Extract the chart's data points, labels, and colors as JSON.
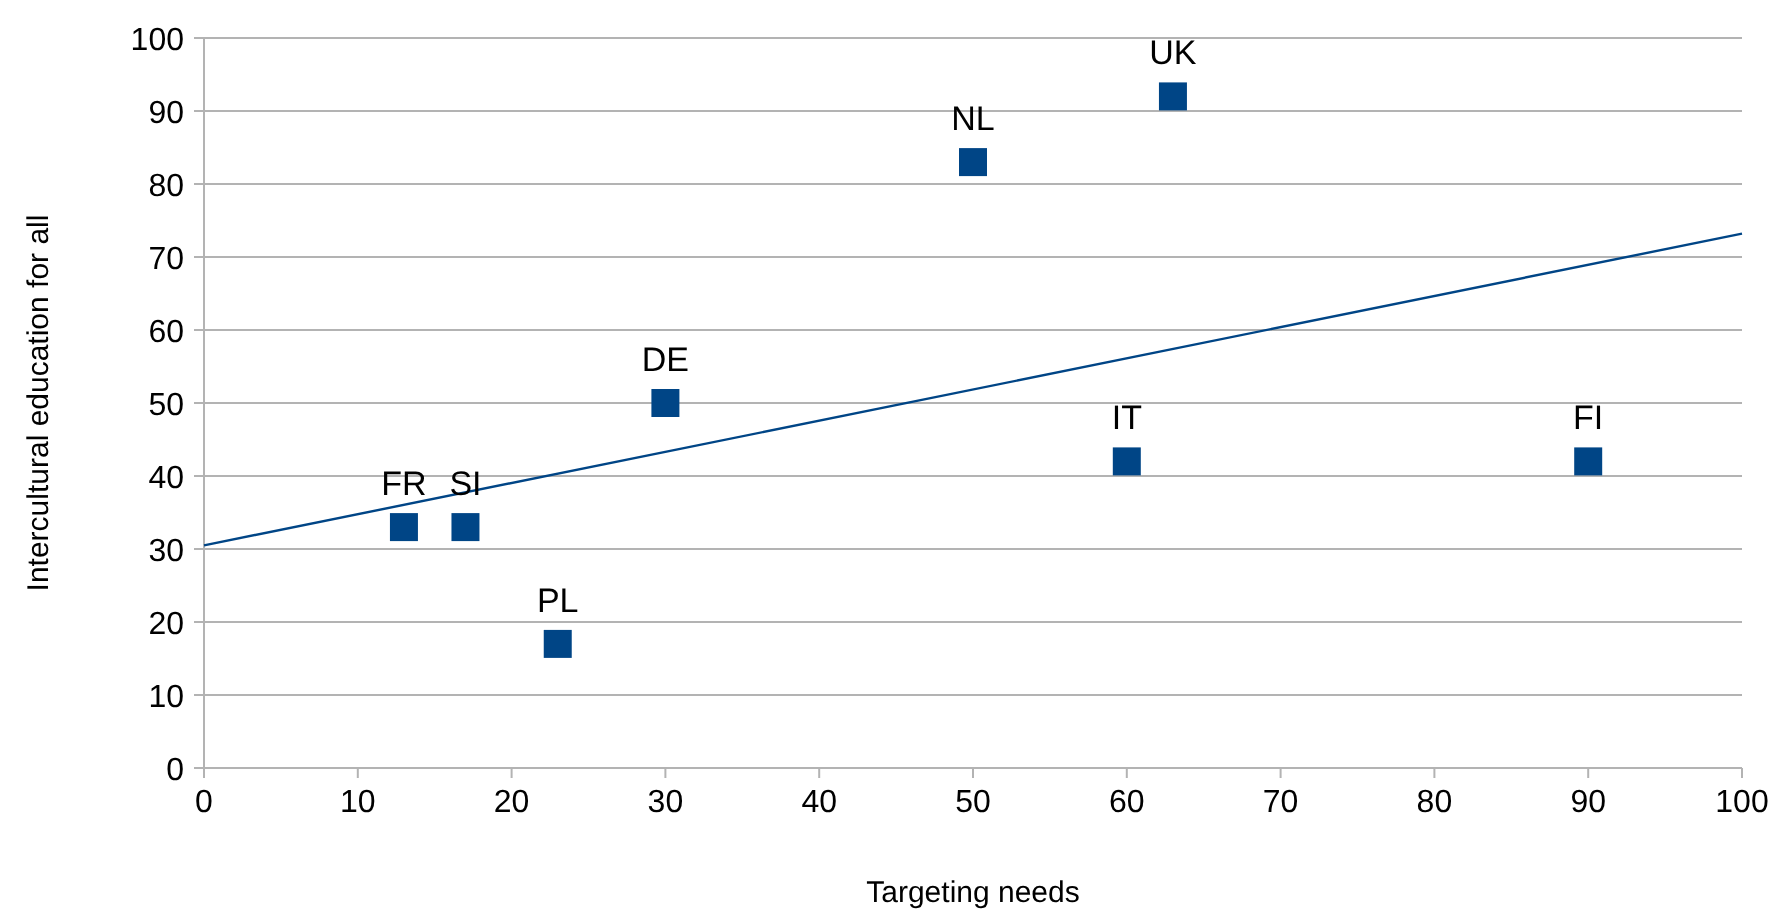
{
  "chart_data": {
    "type": "scatter",
    "xlabel": "Targeting needs",
    "ylabel": "Intercultural education for all",
    "x": [
      13,
      17,
      23,
      30,
      50,
      63,
      60,
      90
    ],
    "series": [
      {
        "color": "#004586",
        "marker": "square",
        "values": [
          33,
          33,
          17,
          50,
          83,
          92,
          42,
          42
        ]
      },
      {
        "type": "line",
        "color": "#004586",
        "x": [
          0,
          100
        ],
        "values": [
          30.5,
          73.2
        ]
      }
    ],
    "annotations": [
      {
        "text": "FR",
        "x": 13,
        "y": 33
      },
      {
        "text": "SI",
        "x": 17,
        "y": 33
      },
      {
        "text": "PL",
        "x": 23,
        "y": 17
      },
      {
        "text": "DE",
        "x": 30,
        "y": 50
      },
      {
        "text": "NL",
        "x": 50,
        "y": 83
      },
      {
        "text": "UK",
        "x": 63,
        "y": 92
      },
      {
        "text": "IT",
        "x": 60,
        "y": 42
      },
      {
        "text": "FI",
        "x": 90,
        "y": 42
      }
    ],
    "xlim": [
      0,
      100
    ],
    "xticks": [
      0,
      10,
      20,
      30,
      40,
      50,
      60,
      70,
      80,
      90,
      100
    ],
    "ylim": [
      0,
      100
    ],
    "yticks": [
      0,
      10,
      20,
      30,
      40,
      50,
      60,
      70,
      80,
      90,
      100
    ],
    "grid": "y"
  }
}
